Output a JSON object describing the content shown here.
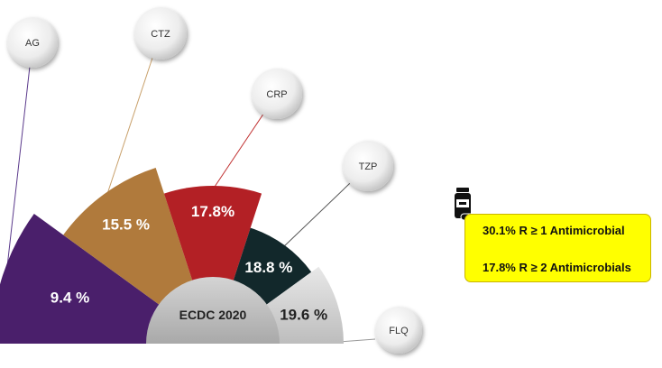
{
  "chart_data": {
    "type": "pie",
    "title": "",
    "center_label": "ECDC 2020",
    "categories": [
      "AG",
      "CTZ",
      "CRP",
      "TZP",
      "FLQ"
    ],
    "values": [
      9.4,
      15.5,
      17.8,
      18.8,
      19.6
    ],
    "value_labels": [
      "9.4 %",
      "15.5 %",
      "17.8%",
      "18.8 %",
      "19.6 %"
    ],
    "colors": [
      "#4a1f6b",
      "#b07a3c",
      "#b32025",
      "#12282b",
      "#cfcfcf"
    ],
    "label_colors": [
      "#ffffff",
      "#ffffff",
      "#ffffff",
      "#ffffff",
      "#222222"
    ]
  },
  "summary": {
    "icon": "pill-bottle-icon",
    "lines": [
      "30.1% R ≥ 1 Antimicrobial",
      "17.8% R ≥ 2 Antimicrobials"
    ]
  }
}
